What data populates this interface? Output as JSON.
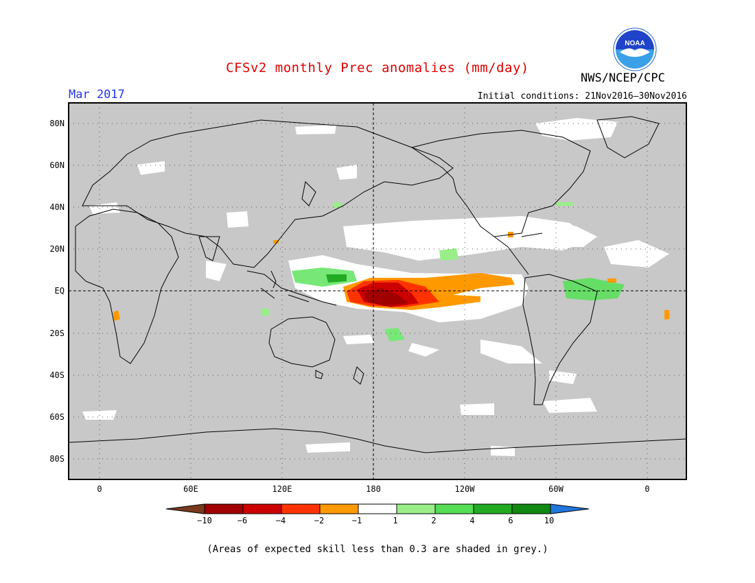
{
  "title": "CFSv2 monthly Prec anomalies (mm/day)",
  "month_label": "Mar 2017",
  "initial_conditions": "Initial conditions: 21Nov2016–30Nov2016",
  "agency": "NWS/NCEP/CPC",
  "logo_text": "NOAA",
  "colors": {
    "title": "#dd0000",
    "month": "#2233ee",
    "land_skill_grey": "#c8c8c8",
    "coast": "#000000"
  },
  "lat_labels": [
    "80N",
    "60N",
    "40N",
    "20N",
    "EQ",
    "20S",
    "40S",
    "60S",
    "80S"
  ],
  "lon_labels": [
    "0",
    "60E",
    "120E",
    "180",
    "120W",
    "60W",
    "0"
  ],
  "colorbar": {
    "colors": [
      "#7a3a1e",
      "#a00000",
      "#cc0000",
      "#ff3300",
      "#ff9900",
      "#ffffff",
      "#99ee88",
      "#55dd55",
      "#22aa22",
      "#118811",
      "#2277dd"
    ],
    "ticks": [
      "−10",
      "−6",
      "−4",
      "−2",
      "−1",
      "1",
      "2",
      "4",
      "6",
      "10"
    ]
  },
  "footnote": "(Areas of expected skill less than 0.3 are shaded in grey.)"
}
